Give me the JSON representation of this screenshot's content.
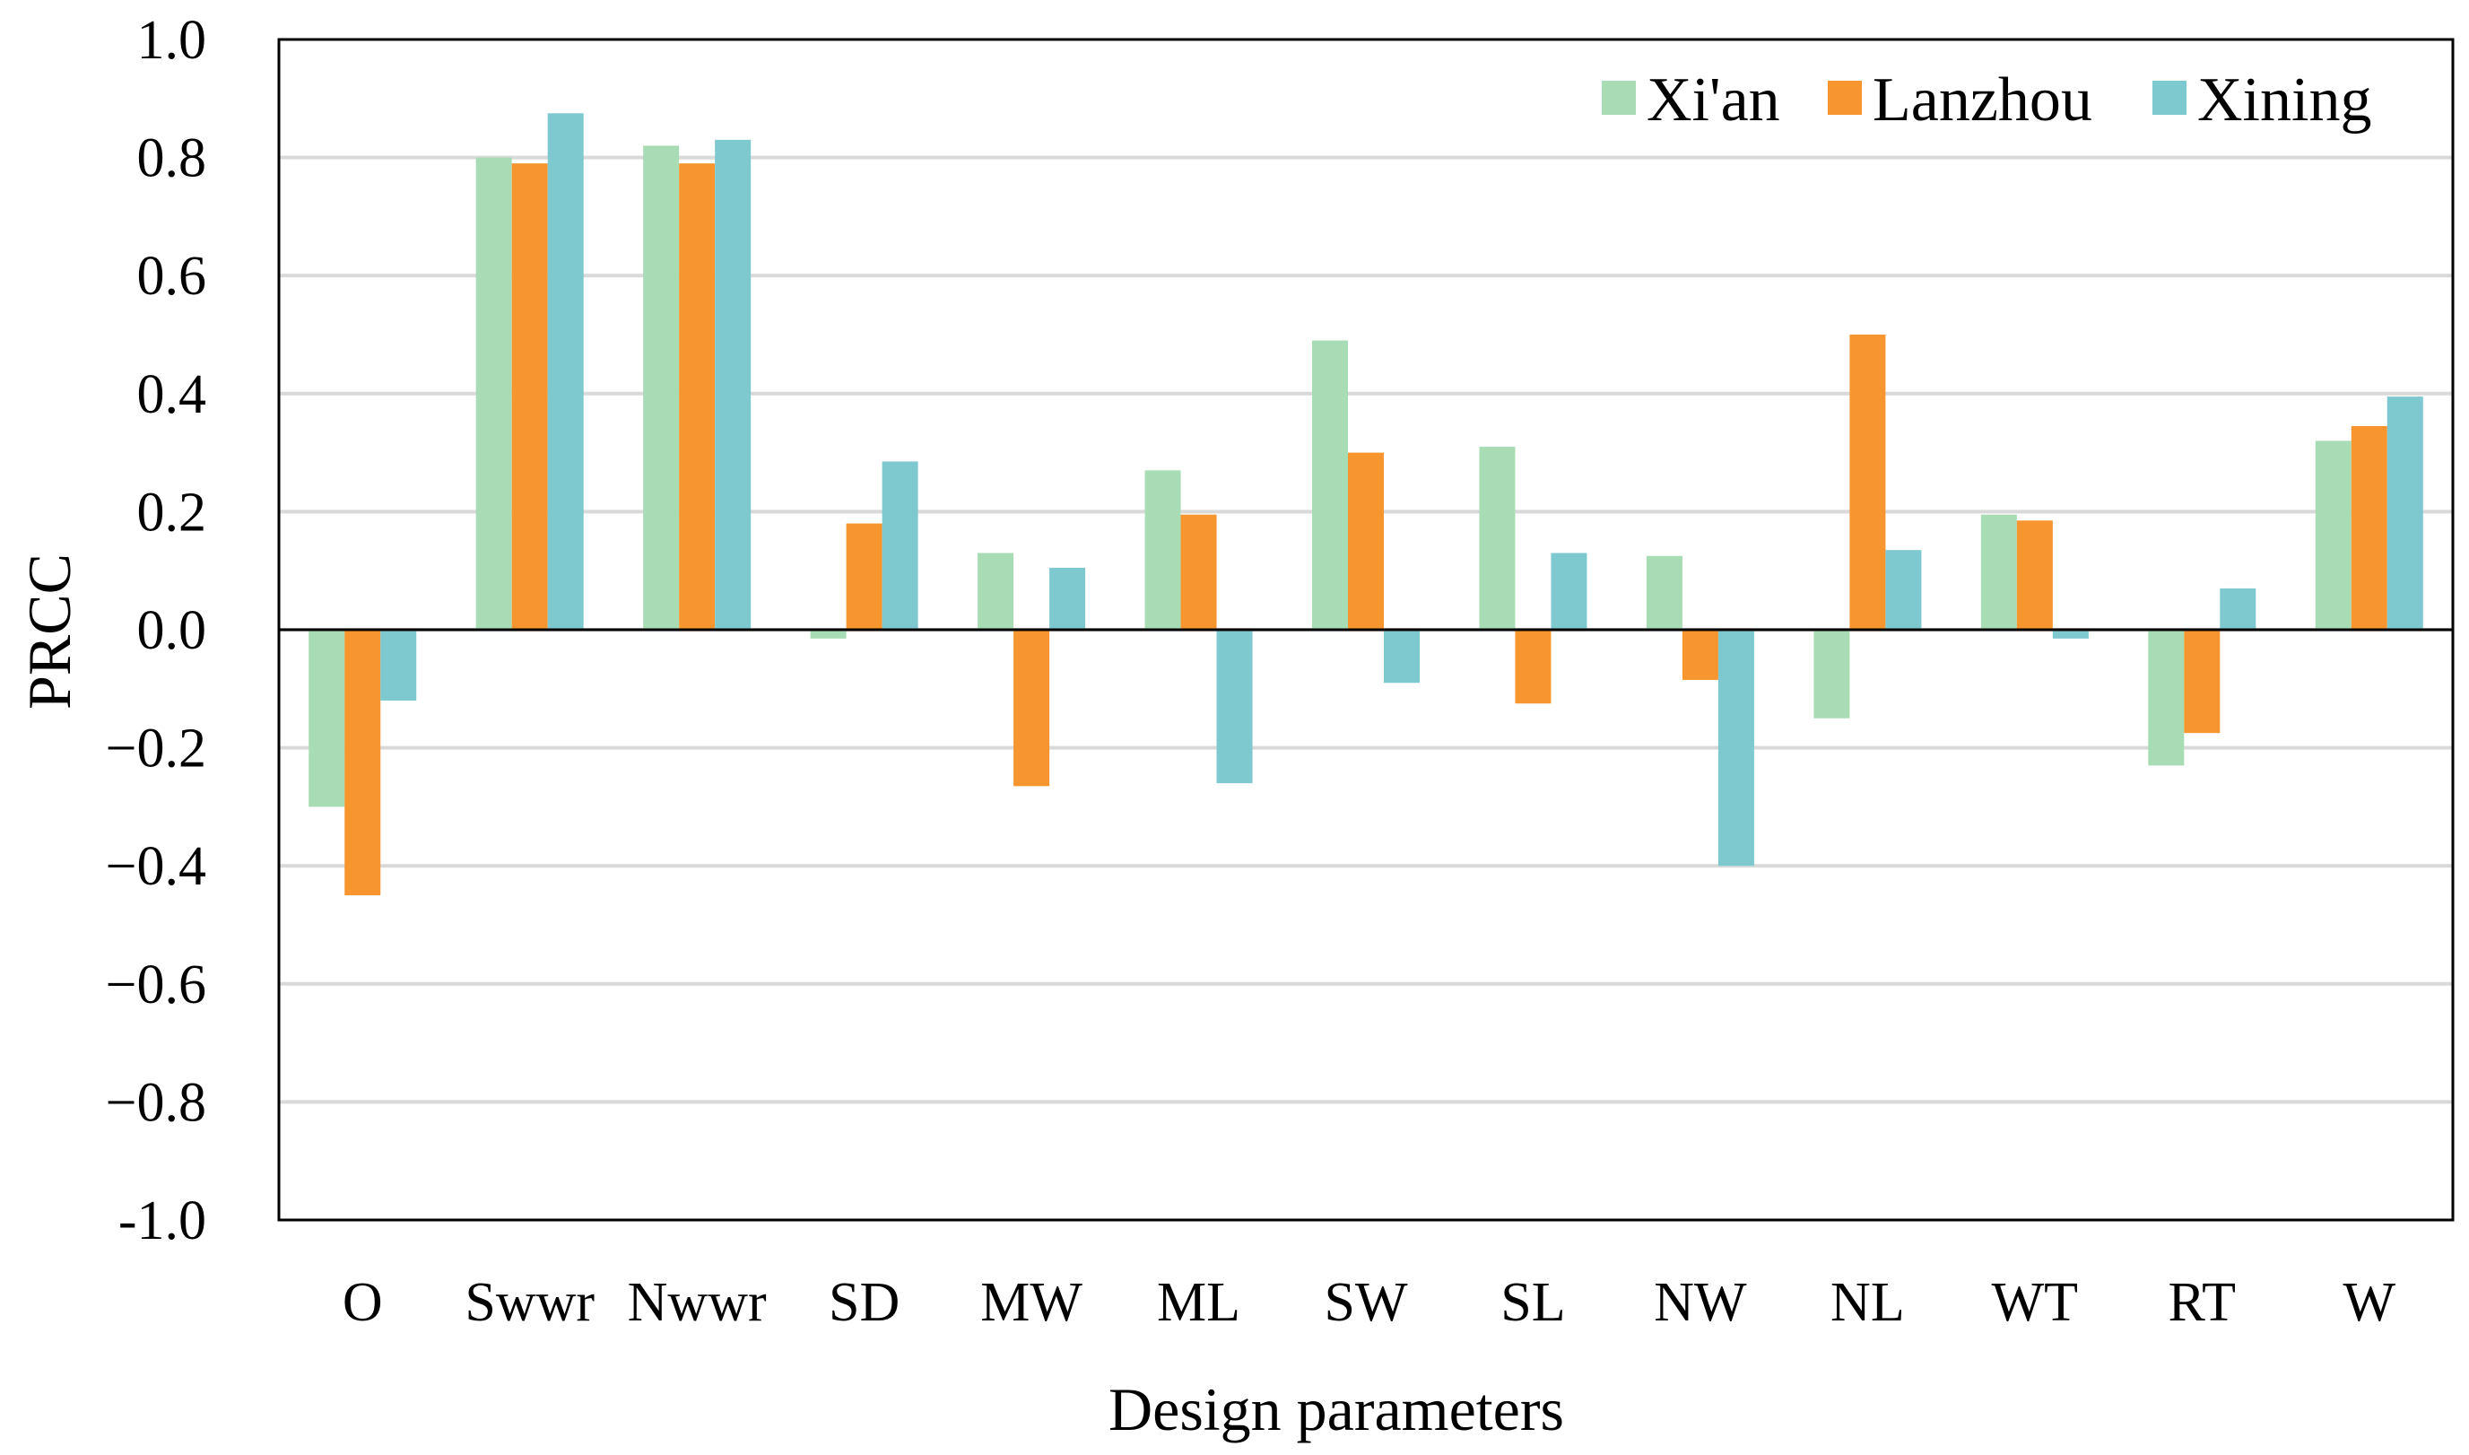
{
  "chart_data": {
    "type": "bar",
    "title": "",
    "xlabel": "Design parameters",
    "ylabel": "PRCC",
    "ylim": [
      -1.0,
      1.0
    ],
    "yticks": [
      "1.0",
      "0.8",
      "0.6",
      "0.4",
      "0.2",
      "0.0",
      "−0.2",
      "−0.4",
      "−0.6",
      "−0.8",
      "-1.0"
    ],
    "ytick_values": [
      1.0,
      0.8,
      0.6,
      0.4,
      0.2,
      0.0,
      -0.2,
      -0.4,
      -0.6,
      -0.8,
      -1.0
    ],
    "grid": true,
    "legend_position": "top-right",
    "categories": [
      "O",
      "Swwr",
      "Nwwr",
      "SD",
      "MW",
      "ML",
      "SW",
      "SL",
      "NW",
      "NL",
      "WT",
      "RT",
      "W"
    ],
    "series": [
      {
        "name": "Xi'an",
        "color": "#a8dcb4",
        "values": [
          -0.3,
          0.8,
          0.82,
          -0.015,
          0.13,
          0.27,
          0.49,
          0.31,
          0.125,
          -0.15,
          0.195,
          -0.23,
          0.32
        ]
      },
      {
        "name": "Lanzhou",
        "color": "#f7962e",
        "values": [
          -0.45,
          0.79,
          0.79,
          0.18,
          -0.265,
          0.195,
          0.3,
          -0.125,
          -0.085,
          0.5,
          0.185,
          -0.175,
          0.345
        ]
      },
      {
        "name": "Xining",
        "color": "#7ec8d0",
        "values": [
          -0.12,
          0.875,
          0.83,
          0.285,
          0.105,
          -0.26,
          -0.09,
          0.13,
          -0.4,
          0.135,
          -0.015,
          0.07,
          0.395
        ]
      }
    ]
  }
}
